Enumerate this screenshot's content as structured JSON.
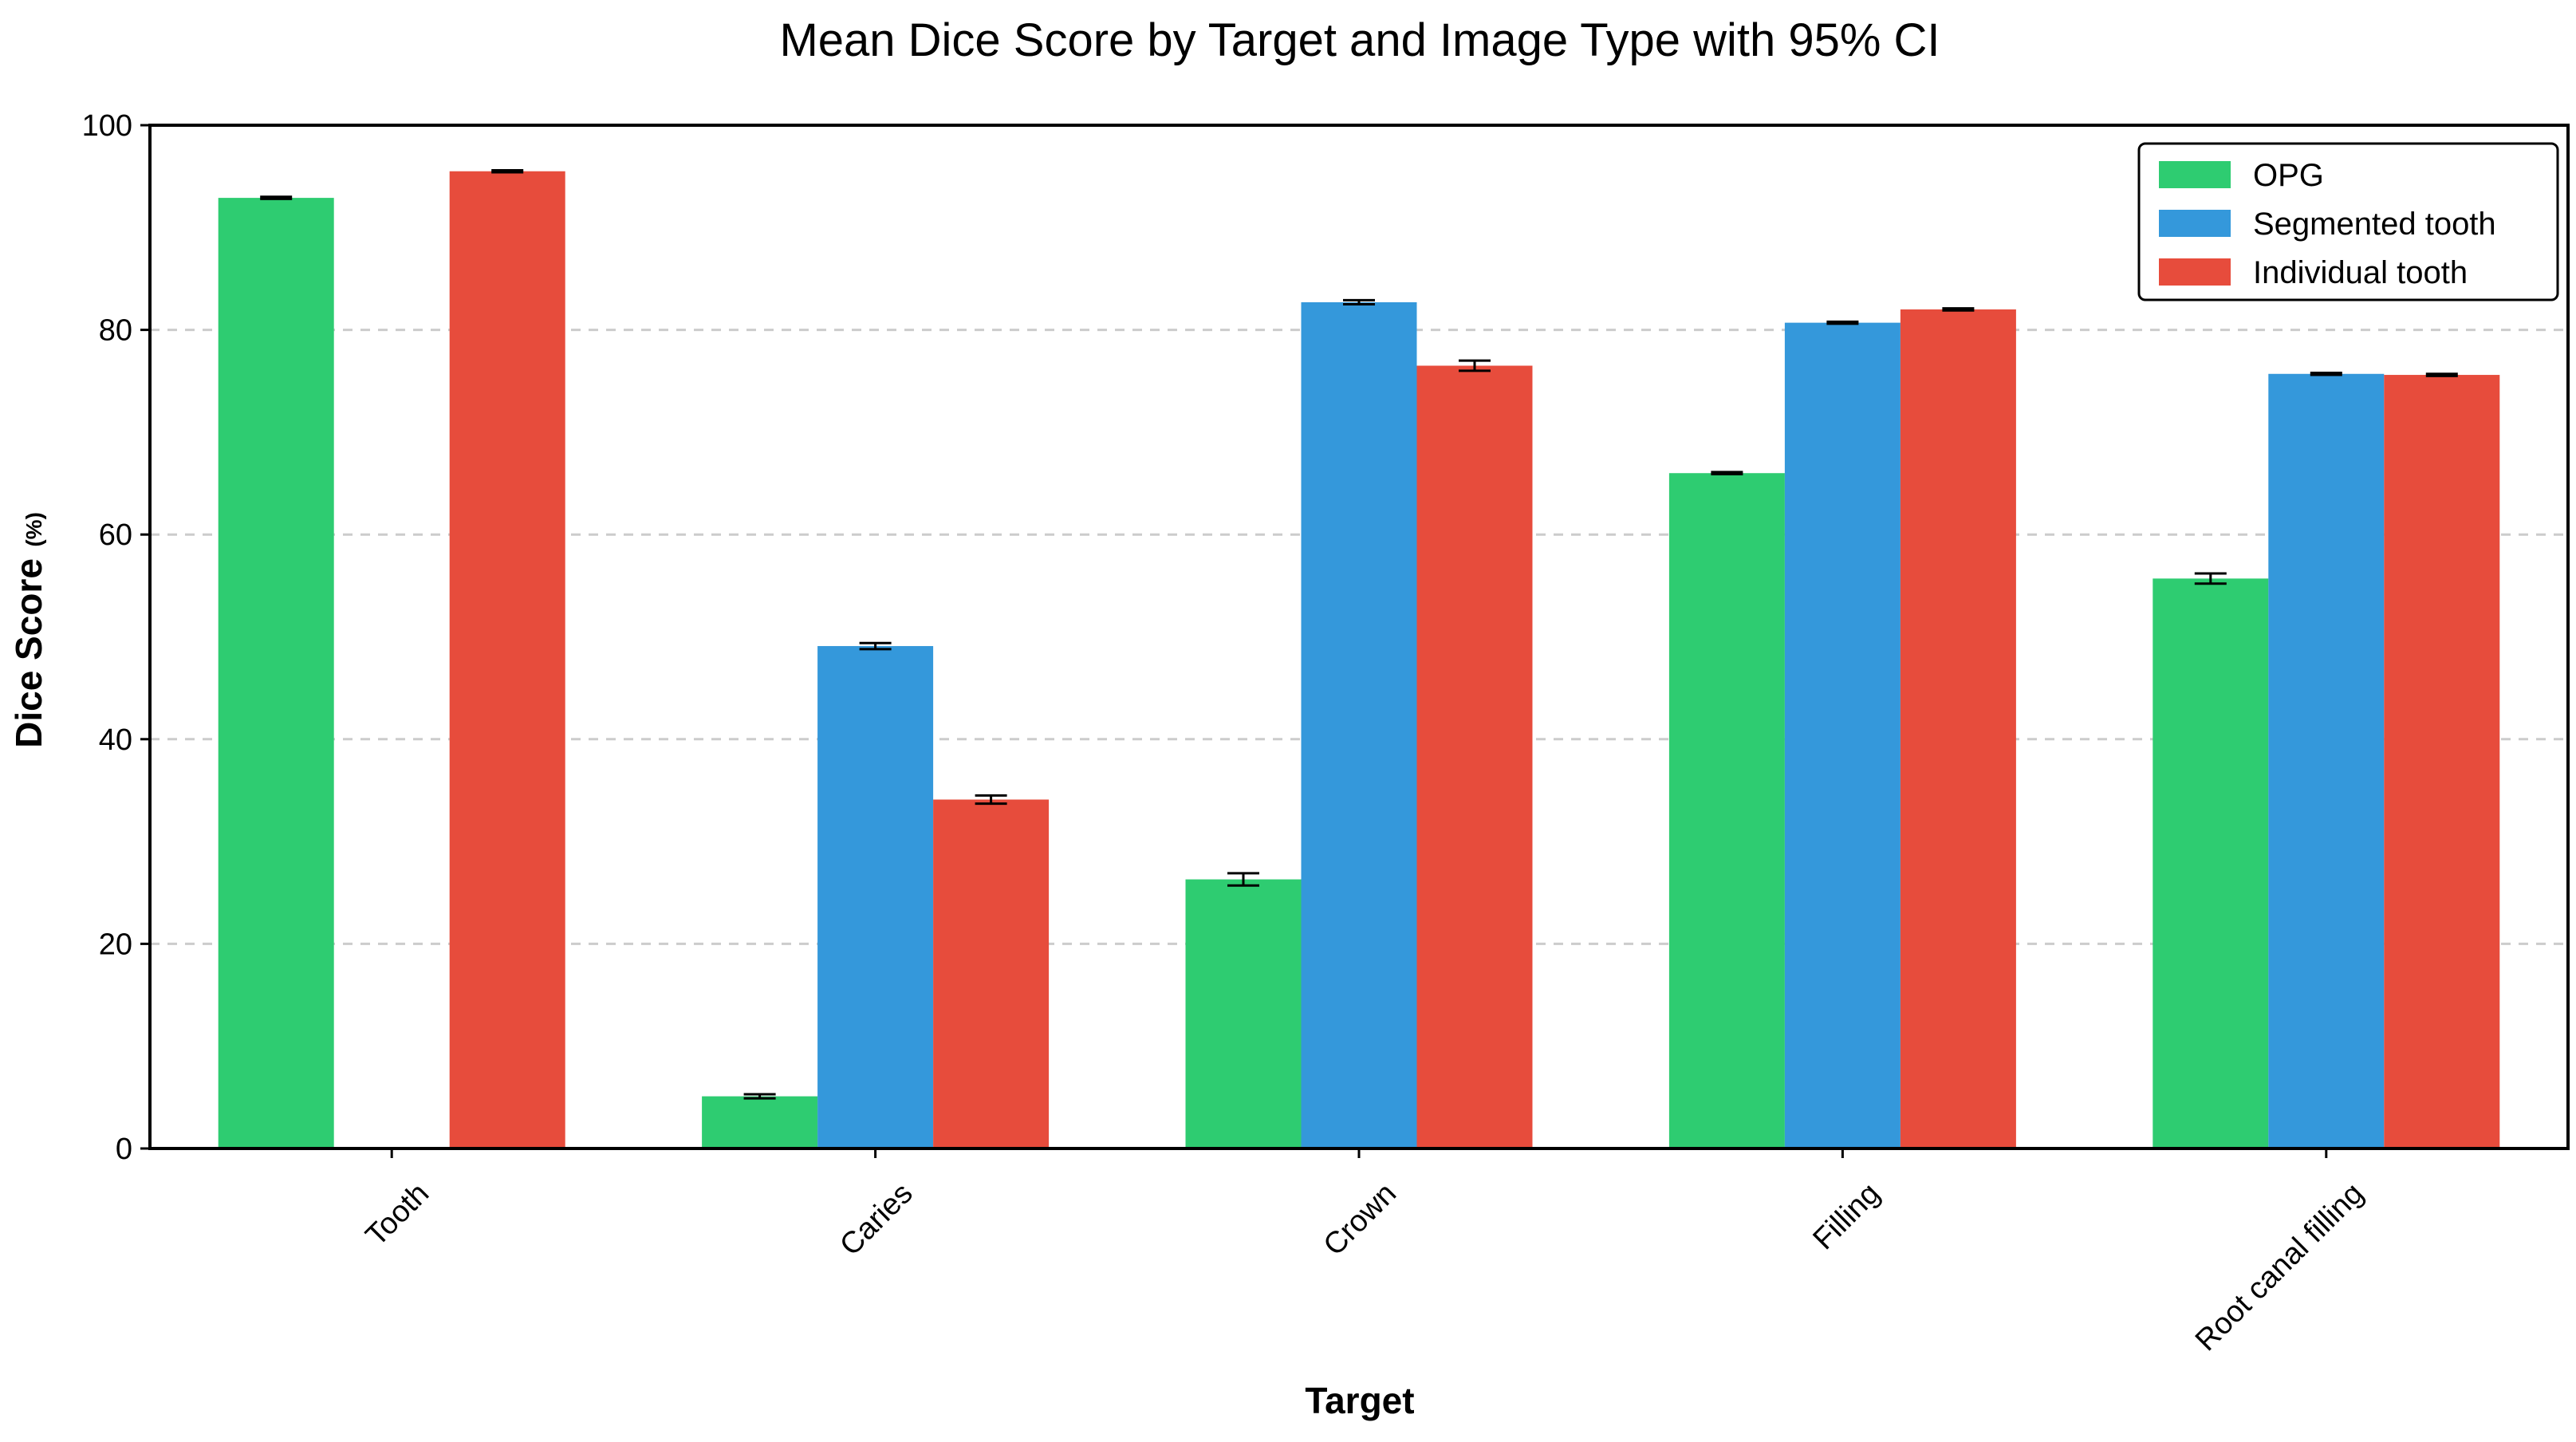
{
  "chart_data": {
    "type": "bar",
    "title": "Mean Dice Score by Target and Image Type with 95% CI",
    "xlabel": "Target",
    "ylabel": "Dice Score",
    "ylabel_unit": "(%)",
    "ylim": [
      0,
      100
    ],
    "yticks": [
      0,
      20,
      40,
      60,
      80,
      100
    ],
    "grid": "y-dashed",
    "legend_position": "top-right",
    "categories": [
      "Tooth",
      "Caries",
      "Crown",
      "Filling",
      "Root canal filling"
    ],
    "series": [
      {
        "name": "OPG",
        "color": "#2ecc71",
        "values": [
          92.9,
          5.1,
          26.3,
          66.0,
          55.7
        ],
        "ci_low": [
          92.8,
          4.9,
          25.7,
          65.9,
          55.2
        ],
        "ci_high": [
          93.0,
          5.3,
          26.9,
          66.1,
          56.2
        ]
      },
      {
        "name": "Segmented tooth",
        "color": "#3498db",
        "values": [
          null,
          49.1,
          82.7,
          80.7,
          75.7
        ],
        "ci_low": [
          null,
          48.8,
          82.5,
          80.6,
          75.6
        ],
        "ci_high": [
          null,
          49.4,
          82.9,
          80.8,
          75.8
        ]
      },
      {
        "name": "Individual tooth",
        "color": "#e74c3c",
        "values": [
          95.5,
          34.1,
          76.5,
          82.0,
          75.6
        ],
        "ci_low": [
          95.4,
          33.7,
          76.0,
          81.9,
          75.5
        ],
        "ci_high": [
          95.6,
          34.5,
          77.0,
          82.1,
          75.7
        ]
      }
    ]
  }
}
